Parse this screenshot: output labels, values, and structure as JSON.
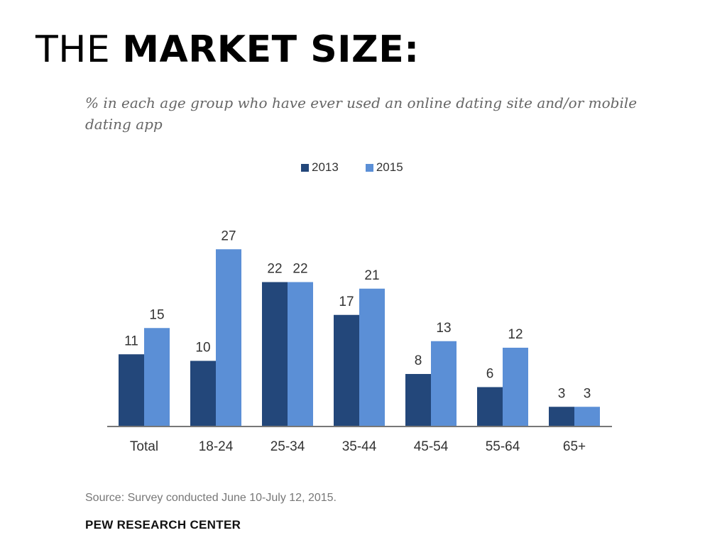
{
  "slide": {
    "title_light": "THE",
    "title_bold": "MARKET SIZE:"
  },
  "chart_data": {
    "type": "bar",
    "title": "",
    "subtitle": "% in each age group who have ever used an online dating site and/or mobile dating app",
    "categories": [
      "Total",
      "18-24",
      "25-34",
      "35-44",
      "45-54",
      "55-64",
      "65+"
    ],
    "series": [
      {
        "name": "2013",
        "color": "#23477a",
        "values": [
          11,
          10,
          22,
          17,
          8,
          6,
          3
        ]
      },
      {
        "name": "2015",
        "color": "#5b8fd6",
        "values": [
          15,
          27,
          22,
          21,
          13,
          12,
          3
        ]
      }
    ],
    "xlabel": "",
    "ylabel": "",
    "ylim": [
      0,
      27
    ],
    "grid": false,
    "legend_position": "top-center",
    "data_labels": true
  },
  "footer": {
    "source": "Source: Survey conducted June 10-July 12, 2015.",
    "brand": "PEW RESEARCH CENTER"
  }
}
